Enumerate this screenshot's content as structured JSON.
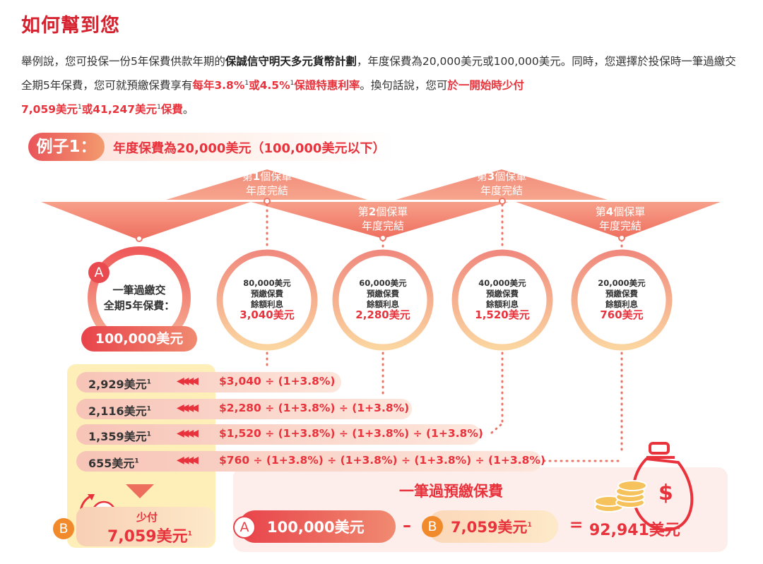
{
  "heading": "如何幫到您",
  "intro": {
    "p1": "舉例說，您可投保一份5年保費供款年期的",
    "plan": "保誠信守明天多元貨幣計劃",
    "p2": "，年度保費為20,000美元或100,000美元。同時，您選擇於投保時一筆過繳交全期5年保費，您可就預繳保費享有",
    "rate_a": "每年3.8%",
    "rate_or": "或4.5%",
    "rate_b": "保證特惠利率",
    "p3": "。換句話說，您可",
    "save_a": "於一開始時少付",
    "save_b": "7,059美元",
    "save_or": "或41,247美元",
    "save_c": "保費",
    "p4": "。",
    "footnote": "1"
  },
  "example": {
    "tag": "例子1：",
    "text": "年度保費為20,000美元（100,000美元以下）"
  },
  "policy_years": [
    {
      "pre": "第",
      "num": "1",
      "post": "個保單",
      "line2": "年度完結"
    },
    {
      "pre": "第",
      "num": "2",
      "post": "個保單",
      "line2": "年度完結"
    },
    {
      "pre": "第",
      "num": "3",
      "post": "個保單",
      "line2": "年度完結"
    },
    {
      "pre": "第",
      "num": "4",
      "post": "個保單",
      "line2": "年度完結"
    }
  ],
  "lump_sum": {
    "badge": "A",
    "label1": "一筆過繳交",
    "label2": "全期5年保費：",
    "amount": "100,000美元"
  },
  "balances": [
    {
      "balance": "80,000美元",
      "l1": "預繳保費",
      "l2": "餘額利息",
      "interest": "3,040美元"
    },
    {
      "balance": "60,000美元",
      "l1": "預繳保費",
      "l2": "餘額利息",
      "interest": "2,280美元"
    },
    {
      "balance": "40,000美元",
      "l1": "預繳保費",
      "l2": "餘額利息",
      "interest": "1,520美元"
    },
    {
      "balance": "20,000美元",
      "l1": "預繳保費",
      "l2": "餘額利息",
      "interest": "760美元"
    }
  ],
  "rows": [
    {
      "value": "2,929美元",
      "sup": "1",
      "formula": "$3,040 ÷ (1+3.8%)"
    },
    {
      "value": "2,116美元",
      "sup": "1",
      "formula": "$2,280 ÷ (1+3.8%) ÷ (1+3.8%)"
    },
    {
      "value": "1,359美元",
      "sup": "1",
      "formula": "$1,520 ÷ (1+3.8%) ÷ (1+3.8%) ÷ (1+3.8%)"
    },
    {
      "value": "655美元",
      "sup": "1",
      "formula": "$760 ÷ (1+3.8%) ÷ (1+3.8%) ÷ (1+3.8%) ÷ (1+3.8%)"
    }
  ],
  "less_pay": {
    "badge": "B",
    "label": "少付",
    "amount": "7,059美元",
    "sup": "1"
  },
  "summary": {
    "title": "一筆過預繳保費",
    "a_badge": "A",
    "a_amount": "100,000美元",
    "minus": "–",
    "b_badge": "B",
    "b_amount": "7,059美元",
    "b_sup": "1",
    "equals": "=",
    "result": "92,941美元"
  },
  "colors": {
    "red": "#e8323c",
    "coral": "#ee7466",
    "orange": "#f08a2b",
    "yellow": "#fdeaa2"
  }
}
